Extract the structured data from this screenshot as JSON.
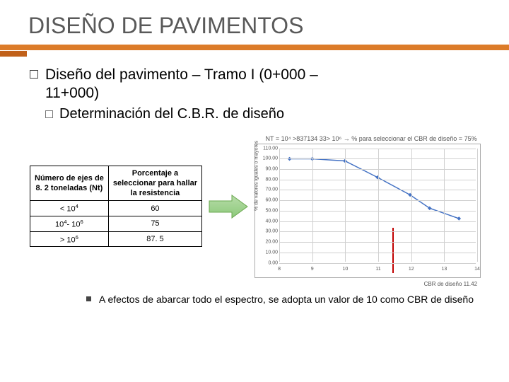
{
  "title": "DISEÑO DE PAVIMENTOS",
  "bullet1_line1": "Diseño del pavimento – Tramo I (0+000 –",
  "bullet1_line2": "11+000)",
  "bullet2": "Determinación del C.B.R. de diseño",
  "table": {
    "header_col1_l1": "Número de ejes de",
    "header_col1_l2": "8. 2 toneladas (Nt)",
    "header_col2_l1": "Porcentaje a",
    "header_col2_l2": "seleccionar para hallar",
    "header_col2_l3": "la resistencia",
    "rows": [
      {
        "r": "< 10",
        "rs": "4",
        "v": "60"
      },
      {
        "r": "10",
        "rs1": "4",
        "mid": "- 10",
        "rs2": "6",
        "v": "75"
      },
      {
        "r": "> 10",
        "rs": "6",
        "v": "87. 5"
      }
    ]
  },
  "chart": {
    "caption": "NT = 10⁴ >837134 33> 10⁶ → % para seleccionar el CBR de diseño = 75%",
    "ylabel": "% de valores iguales o mayores",
    "ylim": [
      0,
      110
    ],
    "ytick_step": 10,
    "xlim": [
      8,
      14
    ],
    "xtick_step": 1,
    "line_color": "#4472c4",
    "marker_color": "#4472c4",
    "grid_color": "#d0d0d0",
    "highlight_color": "#c00000",
    "highlight_x": 11.42,
    "points": [
      {
        "x": 8.3,
        "y": 100
      },
      {
        "x": 9.0,
        "y": 100
      },
      {
        "x": 10.0,
        "y": 98
      },
      {
        "x": 11.0,
        "y": 82
      },
      {
        "x": 12.0,
        "y": 65
      },
      {
        "x": 12.6,
        "y": 52
      },
      {
        "x": 13.5,
        "y": 42
      }
    ],
    "cbr_label": "CBR de diseño 11.42"
  },
  "arrow": {
    "fill_start": "#b7dca9",
    "fill_end": "#8cc97a",
    "stroke": "#6aa84f"
  },
  "footer": "A efectos de abarcar todo el espectro, se adopta un valor de 10 como CBR de diseño"
}
